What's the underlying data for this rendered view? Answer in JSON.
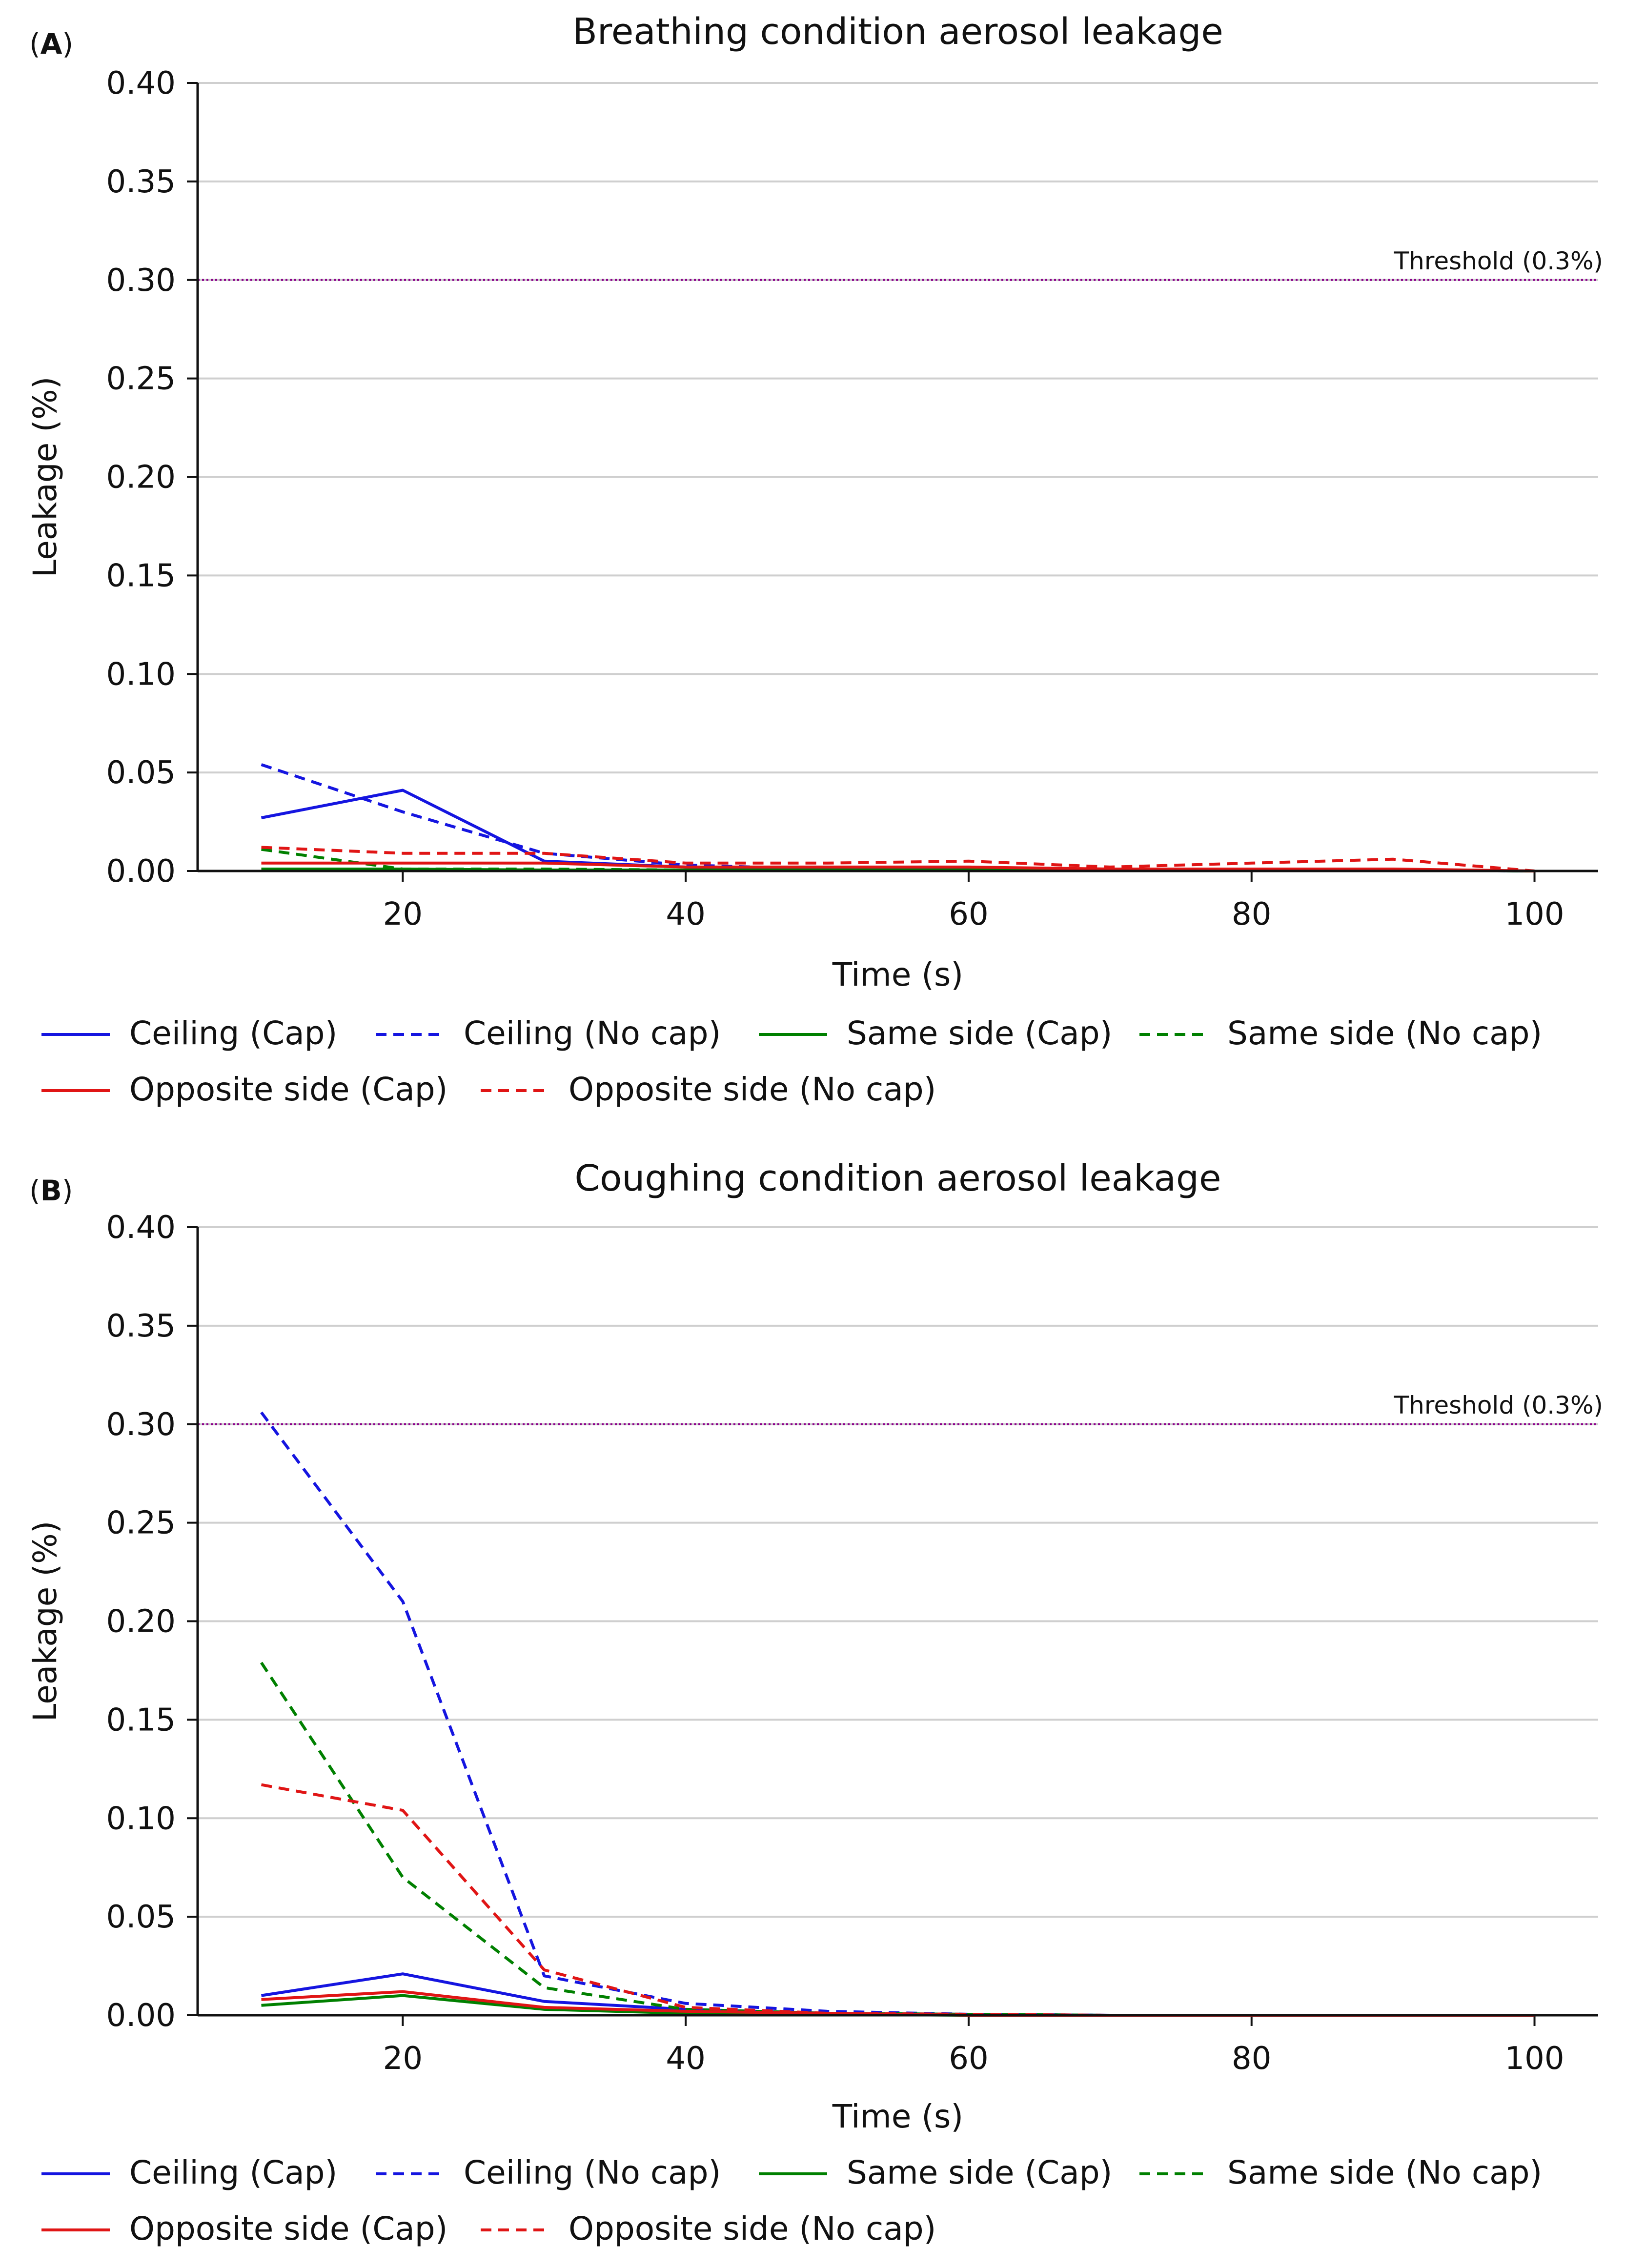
{
  "chart_data": [
    {
      "type": "line",
      "panel_label": "A",
      "title": "Breathing condition aerosol leakage",
      "xlabel": "Time (s)",
      "ylabel": "Leakage (%)",
      "xlim": [
        5.5,
        104.5
      ],
      "ylim": [
        0,
        0.4
      ],
      "xticks": [
        20,
        40,
        60,
        80,
        100
      ],
      "xtick_labels": [
        "20",
        "40",
        "60",
        "80",
        "100"
      ],
      "yticks": [
        0,
        0.05,
        0.1,
        0.15,
        0.2,
        0.25,
        0.3,
        0.35,
        0.4
      ],
      "ytick_labels": [
        "0.00",
        "0.05",
        "0.10",
        "0.15",
        "0.20",
        "0.25",
        "0.30",
        "0.35",
        "0.40"
      ],
      "grid": true,
      "threshold": {
        "value": 0.3,
        "label": "Threshold (0.3%)",
        "color": "#8b008b"
      },
      "x": [
        10,
        20,
        30,
        40,
        50,
        60,
        70,
        80,
        90,
        100
      ],
      "series": [
        {
          "name": "Ceiling (Cap)",
          "color": "#1515e0",
          "dash": false,
          "values": [
            0.027,
            0.041,
            0.005,
            0.002,
            0.001,
            0.001,
            0.001,
            0.0005,
            0.0005,
            0.0
          ]
        },
        {
          "name": "Ceiling (No cap)",
          "color": "#1515e0",
          "dash": true,
          "values": [
            0.054,
            0.03,
            0.009,
            0.003,
            0.001,
            0.001,
            0.0005,
            0.0005,
            0.0005,
            0.0
          ]
        },
        {
          "name": "Same side (Cap)",
          "color": "#008000",
          "dash": false,
          "values": [
            0.001,
            0.001,
            0.0005,
            0.0005,
            0.0005,
            0.0005,
            0.0005,
            0.0005,
            0.0005,
            0.0
          ]
        },
        {
          "name": "Same side (No cap)",
          "color": "#008000",
          "dash": true,
          "values": [
            0.011,
            0.001,
            0.001,
            0.0005,
            0.0005,
            0.0005,
            0.0005,
            0.0005,
            0.0005,
            0.0
          ]
        },
        {
          "name": "Opposite side (Cap)",
          "color": "#e01515",
          "dash": false,
          "values": [
            0.004,
            0.004,
            0.004,
            0.002,
            0.002,
            0.002,
            0.001,
            0.001,
            0.001,
            0.0
          ]
        },
        {
          "name": "Opposite side (No cap)",
          "color": "#e01515",
          "dash": true,
          "values": [
            0.012,
            0.009,
            0.009,
            0.004,
            0.004,
            0.005,
            0.002,
            0.004,
            0.006,
            0.0
          ]
        }
      ]
    },
    {
      "type": "line",
      "panel_label": "B",
      "title": "Coughing condition aerosol leakage",
      "xlabel": "Time (s)",
      "ylabel": "Leakage (%)",
      "xlim": [
        5.5,
        104.5
      ],
      "ylim": [
        0,
        0.4
      ],
      "xticks": [
        20,
        40,
        60,
        80,
        100
      ],
      "xtick_labels": [
        "20",
        "40",
        "60",
        "80",
        "100"
      ],
      "yticks": [
        0,
        0.05,
        0.1,
        0.15,
        0.2,
        0.25,
        0.3,
        0.35,
        0.4
      ],
      "ytick_labels": [
        "0.00",
        "0.05",
        "0.10",
        "0.15",
        "0.20",
        "0.25",
        "0.30",
        "0.35",
        "0.40"
      ],
      "grid": true,
      "threshold": {
        "value": 0.3,
        "label": "Threshold (0.3%)",
        "color": "#8b008b"
      },
      "x": [
        10,
        20,
        30,
        40,
        50,
        60,
        70,
        80,
        90,
        100
      ],
      "series": [
        {
          "name": "Ceiling (Cap)",
          "color": "#1515e0",
          "dash": false,
          "values": [
            0.01,
            0.021,
            0.007,
            0.003,
            0.001,
            0.0005,
            0.0,
            0.0,
            0.0,
            0.0
          ]
        },
        {
          "name": "Ceiling (No cap)",
          "color": "#1515e0",
          "dash": true,
          "values": [
            0.306,
            0.21,
            0.02,
            0.006,
            0.002,
            0.0005,
            0.0,
            0.0,
            0.0,
            0.0
          ]
        },
        {
          "name": "Same side (Cap)",
          "color": "#008000",
          "dash": false,
          "values": [
            0.005,
            0.01,
            0.003,
            0.001,
            0.0005,
            0.0,
            0.0,
            0.0,
            0.0,
            0.0
          ]
        },
        {
          "name": "Same side (No cap)",
          "color": "#008000",
          "dash": true,
          "values": [
            0.179,
            0.07,
            0.014,
            0.003,
            0.001,
            0.0005,
            0.0,
            0.0,
            0.0,
            0.0
          ]
        },
        {
          "name": "Opposite side (Cap)",
          "color": "#e01515",
          "dash": false,
          "values": [
            0.008,
            0.012,
            0.004,
            0.002,
            0.001,
            0.0,
            0.0,
            0.0,
            0.0,
            0.0
          ]
        },
        {
          "name": "Opposite side (No cap)",
          "color": "#e01515",
          "dash": true,
          "values": [
            0.117,
            0.104,
            0.023,
            0.004,
            0.001,
            0.0005,
            0.0,
            0.0,
            0.0,
            0.0
          ]
        }
      ]
    }
  ]
}
